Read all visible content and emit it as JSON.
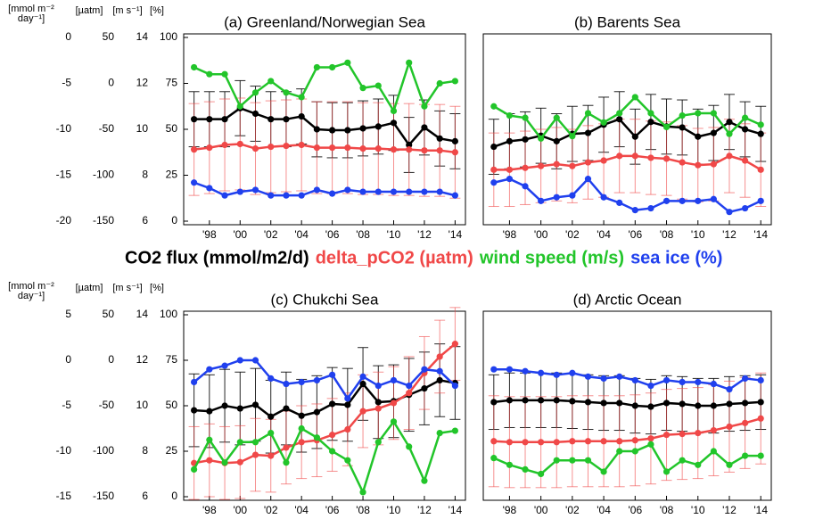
{
  "legend": [
    {
      "name": "CO2 flux (mmol/m2/d)",
      "color": "#000000"
    },
    {
      "name": "delta_pCO2 (µatm)",
      "color": "#f04848"
    },
    {
      "name": "wind speed (m/s)",
      "color": "#22c52a"
    },
    {
      "name": "sea ice (%)",
      "color": "#2040ee"
    }
  ],
  "chart_data": [
    {
      "type": "line",
      "title": "(a) Greenland/Norwegian Sea",
      "x": [
        1997,
        1998,
        1999,
        2000,
        2001,
        2002,
        2003,
        2004,
        2005,
        2006,
        2007,
        2008,
        2009,
        2010,
        2011,
        2012,
        2013,
        2014
      ],
      "xlim": [
        1996.5,
        2014.5
      ],
      "xticks": [
        {
          "value": 1998,
          "label": "'98"
        },
        {
          "value": 2000,
          "label": "'00"
        },
        {
          "value": 2002,
          "label": "'02"
        },
        {
          "value": 2004,
          "label": "'04"
        },
        {
          "value": 2006,
          "label": "'06"
        },
        {
          "value": 2008,
          "label": "'08"
        },
        {
          "value": 2010,
          "label": "'10"
        },
        {
          "value": 2012,
          "label": "'12"
        },
        {
          "value": 2014,
          "label": "'14"
        }
      ],
      "axes": [
        {
          "label": [
            "[mmol m⁻²",
            "day⁻¹]"
          ],
          "ylim": [
            -20,
            0
          ],
          "yticks": [
            -20,
            -15,
            -10,
            -5,
            0
          ]
        },
        {
          "label": [
            "[µatm]"
          ],
          "ylim": [
            -150,
            50
          ],
          "yticks": [
            -150,
            -100,
            -50,
            0,
            50
          ]
        },
        {
          "label": [
            "[m s⁻¹]"
          ],
          "ylim": [
            6,
            14
          ],
          "yticks": [
            6,
            8,
            10,
            12,
            14
          ]
        },
        {
          "label": [
            "[%]"
          ],
          "ylim": [
            0,
            100
          ],
          "yticks": [
            0,
            25,
            50,
            75,
            100
          ]
        }
      ],
      "series": [
        {
          "axis": 0,
          "error": 3.0,
          "values": [
            -8.9,
            -8.9,
            -8.9,
            -7.7,
            -8.3,
            -8.9,
            -8.9,
            -8.6,
            -10.0,
            -10.1,
            -10.1,
            -9.9,
            -9.7,
            -9.3,
            -11.7,
            -9.8,
            -11.0,
            -11.3
          ]
        },
        {
          "axis": 1,
          "error": 50,
          "values": [
            -72,
            -70,
            -67,
            -66,
            -71,
            -69,
            -68,
            -67,
            -70,
            -70,
            -70,
            -71,
            -71,
            -72,
            -72,
            -73,
            -73,
            -75
          ]
        },
        {
          "axis": 2,
          "values": [
            12.7,
            12.4,
            12.4,
            11.0,
            11.6,
            12.1,
            11.6,
            11.4,
            12.7,
            12.7,
            12.9,
            11.8,
            11.9,
            10.8,
            12.9,
            11.0,
            12.0,
            12.1
          ]
        },
        {
          "axis": 3,
          "values": [
            21,
            18,
            14,
            16,
            17,
            14,
            14,
            14,
            17,
            15,
            17,
            16,
            16,
            16,
            16,
            16,
            16,
            14
          ]
        }
      ]
    },
    {
      "type": "line",
      "title": "(b) Barents Sea",
      "x": [
        1997,
        1998,
        1999,
        2000,
        2001,
        2002,
        2003,
        2004,
        2005,
        2006,
        2007,
        2008,
        2009,
        2010,
        2011,
        2012,
        2013,
        2014
      ],
      "xlim": [
        1996.5,
        2014.5
      ],
      "xticks": [
        {
          "value": 1998,
          "label": "'98"
        },
        {
          "value": 2000,
          "label": "'00"
        },
        {
          "value": 2002,
          "label": "'02"
        },
        {
          "value": 2004,
          "label": "'04"
        },
        {
          "value": 2006,
          "label": "'06"
        },
        {
          "value": 2008,
          "label": "'08"
        },
        {
          "value": 2010,
          "label": "'10"
        },
        {
          "value": 2012,
          "label": "'12"
        },
        {
          "value": 2014,
          "label": "'14"
        }
      ],
      "axes": [
        {
          "ylim": [
            -20,
            0
          ]
        },
        {
          "ylim": [
            -150,
            50
          ]
        },
        {
          "ylim": [
            6,
            14
          ]
        },
        {
          "ylim": [
            0,
            100
          ]
        }
      ],
      "series": [
        {
          "axis": 0,
          "error": 3.0,
          "values": [
            -11.9,
            -11.3,
            -11.1,
            -10.7,
            -11.3,
            -10.5,
            -10.4,
            -9.5,
            -8.9,
            -10.8,
            -9.2,
            -9.7,
            -9.8,
            -10.8,
            -10.4,
            -9.2,
            -10.0,
            -10.5
          ]
        },
        {
          "axis": 1,
          "error": 40,
          "values": [
            -94,
            -94,
            -92,
            -90,
            -88,
            -90,
            -86,
            -84,
            -79,
            -79,
            -81,
            -82,
            -86,
            -89,
            -88,
            -79,
            -84,
            -94
          ]
        },
        {
          "axis": 2,
          "values": [
            11.0,
            10.6,
            10.5,
            9.6,
            10.5,
            9.7,
            10.7,
            10.3,
            10.7,
            11.4,
            10.7,
            10.1,
            10.6,
            10.7,
            10.7,
            9.8,
            10.5,
            10.2
          ]
        },
        {
          "axis": 3,
          "values": [
            21,
            23,
            19,
            11,
            13,
            14,
            23,
            13,
            10,
            6,
            7,
            11,
            11,
            11,
            12,
            5,
            7,
            11
          ]
        }
      ]
    },
    {
      "type": "line",
      "title": "(c) Chukchi Sea",
      "x": [
        1997,
        1998,
        1999,
        2000,
        2001,
        2002,
        2003,
        2004,
        2005,
        2006,
        2007,
        2008,
        2009,
        2010,
        2011,
        2012,
        2013,
        2014
      ],
      "xlim": [
        1996.5,
        2014.5
      ],
      "xticks": [
        {
          "value": 1998,
          "label": "'98"
        },
        {
          "value": 2000,
          "label": "'00"
        },
        {
          "value": 2002,
          "label": "'02"
        },
        {
          "value": 2004,
          "label": "'04"
        },
        {
          "value": 2006,
          "label": "'06"
        },
        {
          "value": 2008,
          "label": "'08"
        },
        {
          "value": 2010,
          "label": "'10"
        },
        {
          "value": 2012,
          "label": "'12"
        },
        {
          "value": 2014,
          "label": "'14"
        }
      ],
      "axes": [
        {
          "label": [
            "[mmol m⁻²",
            "day⁻¹]"
          ],
          "ylim": [
            -15,
            5
          ],
          "yticks": [
            -15,
            -10,
            -5,
            0,
            5
          ]
        },
        {
          "label": [
            "[µatm]"
          ],
          "ylim": [
            -150,
            50
          ],
          "yticks": [
            -150,
            -100,
            -50,
            0,
            50
          ]
        },
        {
          "label": [
            "[m s⁻¹]"
          ],
          "ylim": [
            6,
            14
          ],
          "yticks": [
            6,
            8,
            10,
            12,
            14
          ]
        },
        {
          "label": [
            "[%]"
          ],
          "ylim": [
            0,
            100
          ],
          "yticks": [
            0,
            25,
            50,
            75,
            100
          ]
        }
      ],
      "series": [
        {
          "axis": 0,
          "error": 4.0,
          "values": [
            -5.5,
            -5.6,
            -5.0,
            -5.3,
            -4.9,
            -6.2,
            -5.3,
            -6.1,
            -5.7,
            -4.8,
            -4.9,
            -2.6,
            -4.6,
            -4.5,
            -3.8,
            -3.1,
            -2.2,
            -2.5
          ]
        },
        {
          "axis": 1,
          "error": 40,
          "values": [
            -113,
            -110,
            -113,
            -112,
            -104,
            -105,
            -96,
            -90,
            -88,
            -82,
            -76,
            -56,
            -53,
            -47,
            -36,
            -14,
            4,
            18
          ]
        },
        {
          "axis": 2,
          "values": [
            7.2,
            8.5,
            7.5,
            8.4,
            8.4,
            8.8,
            7.5,
            9.0,
            8.6,
            8.0,
            7.6,
            6.2,
            8.4,
            9.3,
            8.2,
            6.7,
            8.8,
            8.9
          ]
        },
        {
          "axis": 3,
          "values": [
            63,
            70,
            72,
            75,
            75,
            65,
            62,
            63,
            64,
            67,
            54,
            66,
            61,
            64,
            61,
            70,
            69,
            61
          ]
        }
      ]
    },
    {
      "type": "line",
      "title": "(d) Arctic Ocean",
      "x": [
        1997,
        1998,
        1999,
        2000,
        2001,
        2002,
        2003,
        2004,
        2005,
        2006,
        2007,
        2008,
        2009,
        2010,
        2011,
        2012,
        2013,
        2014
      ],
      "xlim": [
        1996.5,
        2014.5
      ],
      "xticks": [
        {
          "value": 1998,
          "label": "'98"
        },
        {
          "value": 2000,
          "label": "'00"
        },
        {
          "value": 2002,
          "label": "'02"
        },
        {
          "value": 2004,
          "label": "'04"
        },
        {
          "value": 2006,
          "label": "'06"
        },
        {
          "value": 2008,
          "label": "'08"
        },
        {
          "value": 2010,
          "label": "'10"
        },
        {
          "value": 2012,
          "label": "'12"
        },
        {
          "value": 2014,
          "label": "'14"
        }
      ],
      "axes": [
        {
          "ylim": [
            -15,
            5
          ]
        },
        {
          "ylim": [
            -150,
            50
          ]
        },
        {
          "ylim": [
            6,
            14
          ]
        },
        {
          "ylim": [
            0,
            100
          ]
        }
      ],
      "series": [
        {
          "axis": 0,
          "error": 3.0,
          "values": [
            -4.6,
            -4.4,
            -4.4,
            -4.4,
            -4.4,
            -4.5,
            -4.6,
            -4.7,
            -4.7,
            -5.0,
            -5.1,
            -4.7,
            -4.8,
            -5.0,
            -5.0,
            -4.8,
            -4.7,
            -4.6
          ]
        },
        {
          "axis": 1,
          "error": 50,
          "values": [
            -89,
            -90,
            -90,
            -90,
            -90,
            -89,
            -89,
            -89,
            -89,
            -88,
            -86,
            -82,
            -81,
            -80,
            -77,
            -73,
            -69,
            -64
          ]
        },
        {
          "axis": 2,
          "values": [
            7.7,
            7.4,
            7.2,
            7.0,
            7.6,
            7.6,
            7.6,
            7.1,
            8.0,
            8.0,
            8.3,
            7.1,
            7.6,
            7.4,
            8.0,
            7.4,
            7.8,
            7.8
          ]
        },
        {
          "axis": 3,
          "values": [
            70,
            70,
            69,
            68,
            67,
            68,
            66,
            65,
            66,
            64,
            61,
            64,
            63,
            63,
            62,
            59,
            65,
            64
          ]
        }
      ]
    }
  ]
}
